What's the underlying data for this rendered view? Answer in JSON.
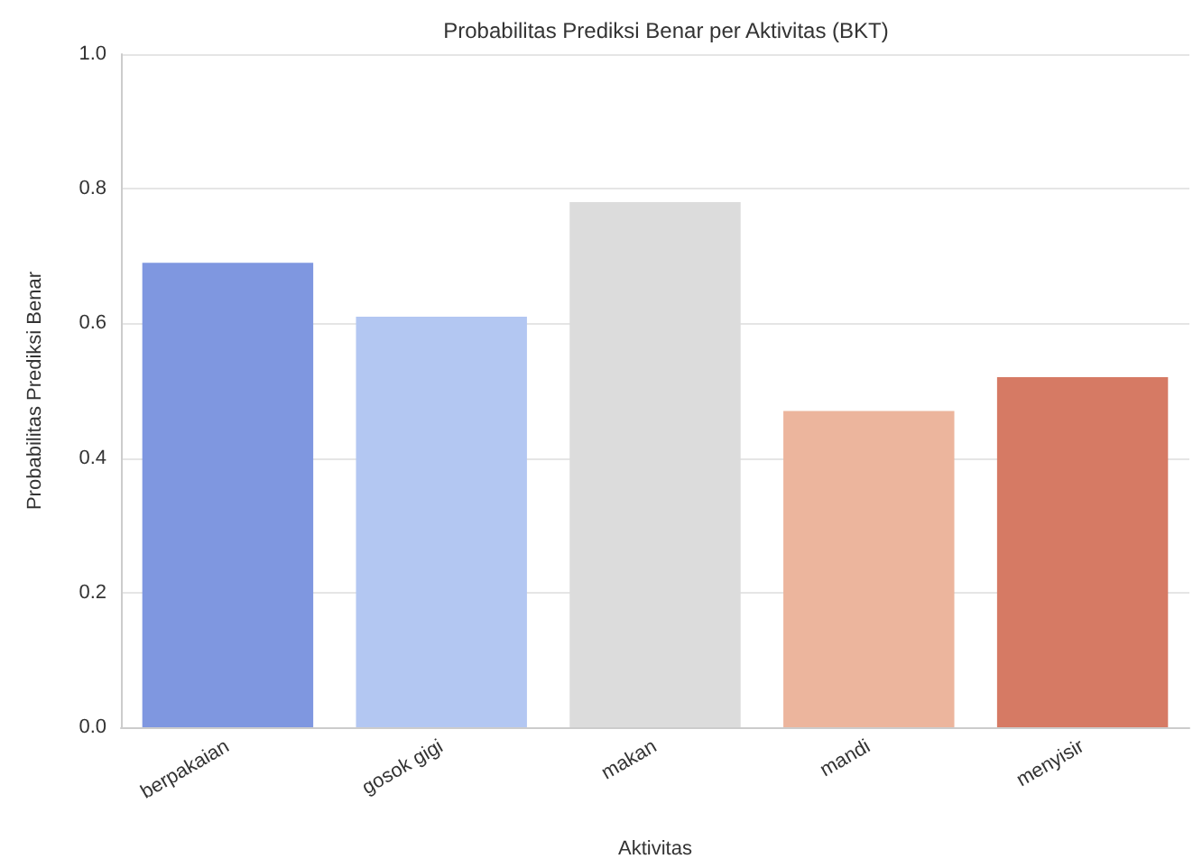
{
  "chart_data": {
    "type": "bar",
    "title": "Probabilitas Prediksi Benar per Aktivitas (BKT)",
    "xlabel": "Aktivitas",
    "ylabel": "Probabilitas Prediksi Benar",
    "categories": [
      "berpakaian",
      "gosok gigi",
      "makan",
      "mandi",
      "menyisir"
    ],
    "values": [
      0.69,
      0.61,
      0.78,
      0.47,
      0.52
    ],
    "colors": [
      "#7f97e0",
      "#b3c7f2",
      "#dcdcdc",
      "#ecb59d",
      "#d67a64"
    ],
    "ylim": [
      0,
      1
    ],
    "yticks": [
      {
        "value": 0,
        "label": "0.0"
      },
      {
        "value": 0.2,
        "label": "0.2"
      },
      {
        "value": 0.4,
        "label": "0.4"
      },
      {
        "value": 0.6,
        "label": "0.6"
      },
      {
        "value": 0.8,
        "label": "0.8"
      },
      {
        "value": 1,
        "label": "1.0"
      }
    ],
    "grid": "y"
  }
}
